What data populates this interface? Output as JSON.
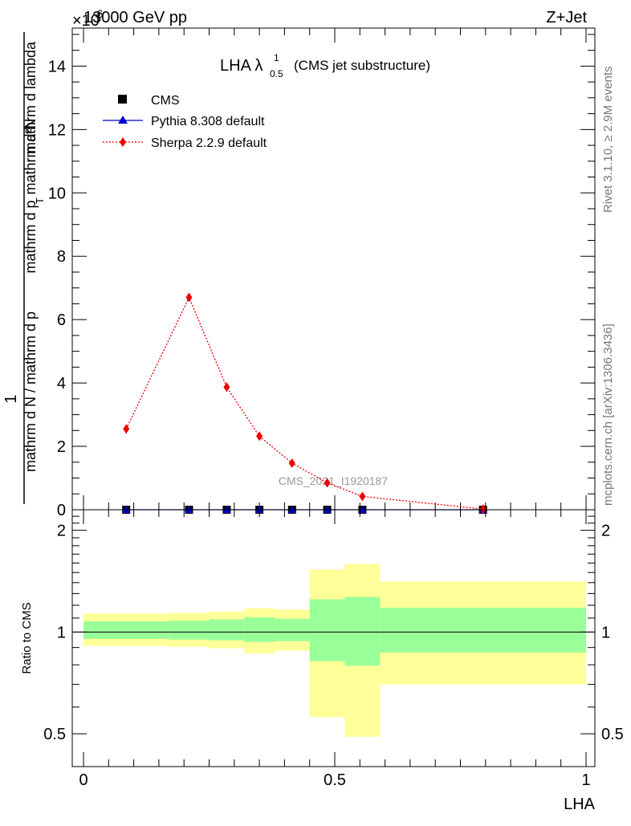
{
  "header": {
    "energy_label": "13000 GeV pp",
    "process_label": "Z+Jet",
    "exponent_label": "×10",
    "exponent_value": "-6"
  },
  "right_side": {
    "rivet_label": "Rivet 3.1.10, ≥ 2.9M events",
    "mcplots_label": "mcplots.cern.ch [arXiv:1306.3436]"
  },
  "watermark": "CMS_2021_I1920187",
  "colors": {
    "cms": "#000000",
    "pythia": "#0000cc",
    "sherpa": "#ee0000",
    "band_outer": "#ffff99",
    "band_inner": "#99ff99"
  },
  "chart_data": [
    {
      "type": "line",
      "title": "LHA λ",
      "title_sup": "1",
      "title_sub": "0.5",
      "title_suffix": "(CMS jet substructure)",
      "ylabel_top": "mathrm d²N",
      "ylabel_num": "1",
      "ylabel_den": "mathrm d N / mathrm d p",
      "ylabel_mid": "mathrm d p",
      "ylabel_rest": "mathrm d lambda",
      "ylabel_sub": "T",
      "xlim": [
        0,
        1
      ],
      "ylim": [
        0,
        15.2
      ],
      "y_multiplier_note": "values in units of 10^-6",
      "yticks": [
        "0",
        "2",
        "4",
        "6",
        "8",
        "10",
        "12",
        "14"
      ],
      "legend_position": "top-left",
      "legend": [
        {
          "name": "CMS",
          "marker": "square"
        },
        {
          "name": "Pythia 8.308 default",
          "marker": "triangle"
        },
        {
          "name": "Sherpa 2.2.9 default",
          "marker": "diamond"
        }
      ],
      "series": [
        {
          "name": "CMS",
          "x": [
            0.085,
            0.21,
            0.285,
            0.35,
            0.415,
            0.485,
            0.555,
            0.795
          ],
          "values": [
            0.0,
            0.0,
            0.0,
            0.0,
            0.0,
            0.0,
            0.0,
            0.0
          ]
        },
        {
          "name": "Pythia 8.308 default",
          "x": [
            0.085,
            0.21,
            0.285,
            0.35,
            0.415,
            0.485,
            0.555,
            0.795
          ],
          "values": [
            0.0,
            0.0,
            0.0,
            0.0,
            0.0,
            0.0,
            0.0,
            0.0
          ]
        },
        {
          "name": "Sherpa 2.2.9 default",
          "x": [
            0.085,
            0.21,
            0.285,
            0.35,
            0.415,
            0.485,
            0.555,
            0.795
          ],
          "values": [
            2.55,
            6.7,
            3.87,
            2.32,
            1.47,
            0.85,
            0.42,
            0.02
          ]
        }
      ]
    },
    {
      "type": "area",
      "ylabel": "Ratio to CMS",
      "xlabel": "LHA",
      "xlim": [
        0,
        1
      ],
      "ylim": [
        0.4,
        2.3
      ],
      "y_scale": "log",
      "yticks": [
        "0.5",
        "1",
        "2"
      ],
      "xticks": [
        "0",
        "0.5",
        "1"
      ],
      "reference_line": 1,
      "bins": [
        {
          "x0": 0.0,
          "x1": 0.17,
          "inner": [
            0.955,
            1.075
          ],
          "outer": [
            0.91,
            1.135
          ]
        },
        {
          "x0": 0.17,
          "x1": 0.25,
          "inner": [
            0.95,
            1.08
          ],
          "outer": [
            0.905,
            1.14
          ]
        },
        {
          "x0": 0.25,
          "x1": 0.32,
          "inner": [
            0.945,
            1.09
          ],
          "outer": [
            0.895,
            1.15
          ]
        },
        {
          "x0": 0.32,
          "x1": 0.38,
          "inner": [
            0.935,
            1.105
          ],
          "outer": [
            0.865,
            1.175
          ]
        },
        {
          "x0": 0.38,
          "x1": 0.45,
          "inner": [
            0.94,
            1.095
          ],
          "outer": [
            0.88,
            1.165
          ]
        },
        {
          "x0": 0.45,
          "x1": 0.52,
          "inner": [
            0.82,
            1.25
          ],
          "outer": [
            0.56,
            1.53
          ]
        },
        {
          "x0": 0.52,
          "x1": 0.59,
          "inner": [
            0.795,
            1.27
          ],
          "outer": [
            0.49,
            1.59
          ]
        },
        {
          "x0": 0.59,
          "x1": 1.0,
          "inner": [
            0.87,
            1.18
          ],
          "outer": [
            0.7,
            1.41
          ]
        }
      ]
    }
  ]
}
